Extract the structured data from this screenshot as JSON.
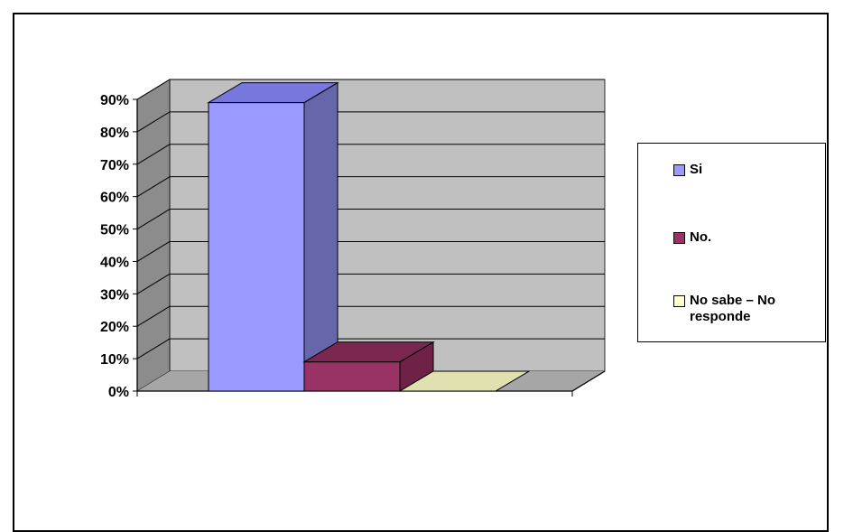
{
  "chart_data": {
    "type": "bar",
    "three_d": true,
    "categories": [
      "Si",
      "No.",
      "No sabe – No responde"
    ],
    "values": [
      89,
      9,
      0
    ],
    "colors": [
      "#9999ff",
      "#993366",
      "#ffffcc"
    ],
    "side_colors": [
      "#6666aa",
      "#6e2346",
      "#c8c8a0"
    ],
    "top_colors": [
      "#7777dd",
      "#7a2850",
      "#e0e0b0"
    ],
    "ylim": [
      0,
      90
    ],
    "yticks": [
      "0%",
      "10%",
      "20%",
      "30%",
      "40%",
      "50%",
      "60%",
      "70%",
      "80%",
      "90%"
    ],
    "grid": true,
    "legend": "right",
    "wall_color": "#c0c0c0",
    "floor_color": "#a6a6a6"
  }
}
